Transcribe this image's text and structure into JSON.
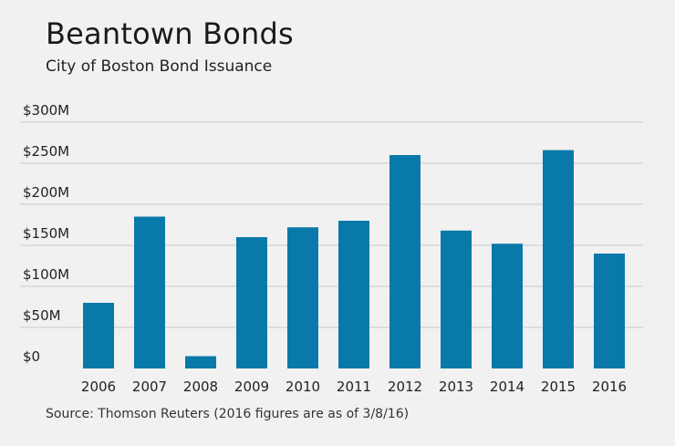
{
  "header": {
    "title": "Beantown Bonds",
    "subtitle": "City of Boston Bond Issuance"
  },
  "footer": {
    "source": "Source: Thomson Reuters (2016 figures are as of 3/8/16)"
  },
  "colors": {
    "bar": "#0879a8",
    "background": "#f1f1f1",
    "grid": "#c9c9c9"
  },
  "chart_data": {
    "type": "bar",
    "title": "Beantown Bonds",
    "subtitle": "City of Boston Bond Issuance",
    "xlabel": "",
    "ylabel": "",
    "categories": [
      "2006",
      "2007",
      "2008",
      "2009",
      "2010",
      "2011",
      "2012",
      "2013",
      "2014",
      "2015",
      "2016"
    ],
    "values": [
      80,
      185,
      15,
      160,
      172,
      180,
      260,
      168,
      152,
      266,
      140
    ],
    "unit": "$M",
    "ylim": [
      0,
      300
    ],
    "yticks": [
      0,
      50,
      100,
      150,
      200,
      250,
      300
    ],
    "ytick_labels": [
      "$0",
      "$50M",
      "$100M",
      "$150M",
      "$200M",
      "$250M",
      "$300M"
    ],
    "grid": true,
    "legend": "none"
  }
}
